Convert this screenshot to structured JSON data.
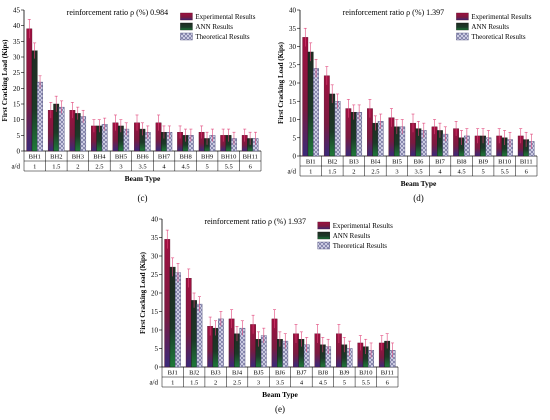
{
  "colors": {
    "experimental": "#8b1a3a",
    "ann": "#1a2a20",
    "theoretical": "#b7b7d6",
    "error_bar": "#e0457a"
  },
  "chart_data": [
    {
      "type": "bar",
      "panel": "(c)",
      "title": "reinforcement ratio ρ (%) 0.984",
      "xlabel": "Beam Type",
      "ylabel": "First Cracking Load (Kips)",
      "ylim": [
        0,
        45
      ],
      "yticks": [
        0,
        5,
        10,
        15,
        20,
        25,
        30,
        35,
        40,
        45
      ],
      "categories": [
        "BH1",
        "BH2",
        "BH3",
        "BH4",
        "BH5",
        "BH6",
        "BH7",
        "BH8",
        "BH9",
        "BH10",
        "BH11"
      ],
      "ad_label": "a/d",
      "ad_values": [
        "1",
        "1.5",
        "2",
        "2.5",
        "3",
        "3.5",
        "4",
        "4.5",
        "5",
        "5.5",
        "6"
      ],
      "series": [
        {
          "name": "Experimental Results",
          "values": [
            39,
            13,
            13,
            8,
            9,
            9,
            9,
            6,
            6,
            5,
            5
          ]
        },
        {
          "name": "ANN Results",
          "values": [
            32,
            15,
            12,
            8,
            8,
            7,
            6,
            5,
            4,
            5,
            4
          ]
        },
        {
          "name": "Theoretical Results",
          "values": [
            22,
            14,
            11,
            8.5,
            7,
            6,
            6,
            5,
            5,
            4,
            4
          ]
        }
      ],
      "errors": [
        [
          3,
          2.5,
          2.5,
          2,
          2.5,
          2.5,
          2.5,
          2,
          2,
          2,
          2
        ],
        [
          2.5,
          2.5,
          2,
          2,
          2,
          2,
          2,
          2,
          2,
          2,
          2
        ],
        [
          2,
          2,
          2,
          2,
          2,
          2,
          2,
          2,
          2,
          2,
          2
        ]
      ],
      "legend": "top-right"
    },
    {
      "type": "bar",
      "panel": "(d)",
      "title": "reinforcement ratio ρ (%) 1.397",
      "xlabel": "Beam Type",
      "ylabel": "First Cracking Load (Kips)",
      "ylim": [
        0,
        40
      ],
      "yticks": [
        0,
        5,
        10,
        15,
        20,
        25,
        30,
        35,
        40
      ],
      "categories": [
        "BI1",
        "BI2",
        "BI3",
        "BI4",
        "BI5",
        "BI6",
        "BI7",
        "BI8",
        "BI9",
        "BI10",
        "BI11"
      ],
      "ad_label": "a/d",
      "ad_values": [
        "1",
        "1.5",
        "2",
        "2.5",
        "3",
        "3.5",
        "4",
        "4.5",
        "5",
        "5.5",
        "6"
      ],
      "series": [
        {
          "name": "Experimental Results",
          "values": [
            32.5,
            22,
            13,
            13,
            10.5,
            9,
            8,
            7.5,
            5.5,
            5.5,
            5.5
          ]
        },
        {
          "name": "ANN Results",
          "values": [
            28.5,
            17,
            12,
            9,
            8,
            7.5,
            7,
            5,
            5.5,
            5,
            4.5
          ]
        },
        {
          "name": "Theoretical Results",
          "values": [
            24,
            15,
            12,
            9.5,
            8,
            7,
            6,
            5.5,
            5,
            4.5,
            4
          ]
        }
      ],
      "errors": [
        [
          2.5,
          2.5,
          2.5,
          2.5,
          2.5,
          2.5,
          2,
          2,
          2,
          2,
          2
        ],
        [
          2.5,
          2.5,
          2,
          2,
          2,
          2,
          2,
          2,
          2,
          2,
          2
        ],
        [
          2.5,
          2,
          2,
          2,
          2,
          2,
          2,
          2,
          2,
          2,
          2
        ]
      ],
      "legend": "top-right"
    },
    {
      "type": "bar",
      "panel": "(e)",
      "title": "reinforcement ratio ρ (%) 1.937",
      "xlabel": "Beam Type",
      "ylabel": "First Cracking Load (Kips)",
      "ylim": [
        0,
        40
      ],
      "yticks": [
        0,
        5,
        10,
        15,
        20,
        25,
        30,
        35,
        40
      ],
      "categories": [
        "BJ1",
        "BJ2",
        "BJ3",
        "BJ4",
        "BJ5",
        "BJ6",
        "BJ7",
        "BJ8",
        "BJ9",
        "BJ10",
        "BJ11"
      ],
      "ad_label": "a/d",
      "ad_values": [
        "1",
        "1.5",
        "2",
        "2.5",
        "3",
        "3.5",
        "4",
        "4.5",
        "5",
        "5.5",
        "6"
      ],
      "series": [
        {
          "name": "Experimental Results",
          "values": [
            34.5,
            24,
            11,
            13,
            11.5,
            13,
            9,
            9,
            9,
            6.5,
            6.5
          ]
        },
        {
          "name": "ANN Results",
          "values": [
            27,
            18,
            10.5,
            9,
            7.5,
            7.5,
            7.5,
            6,
            6,
            5.5,
            7
          ]
        },
        {
          "name": "Theoretical Results",
          "values": [
            25.5,
            17,
            13,
            10.5,
            8.5,
            7,
            6,
            5.5,
            5,
            4.5,
            4.5
          ]
        }
      ],
      "errors": [
        [
          2.5,
          2.5,
          2.5,
          2.5,
          2.5,
          2.5,
          2.5,
          2.5,
          2.5,
          2,
          2
        ],
        [
          2.5,
          2,
          2,
          2,
          2,
          2,
          2,
          2,
          2,
          2,
          2
        ],
        [
          2.5,
          2,
          2,
          2,
          2,
          2,
          2,
          2,
          2,
          2,
          2
        ]
      ],
      "legend": "top-right"
    }
  ]
}
